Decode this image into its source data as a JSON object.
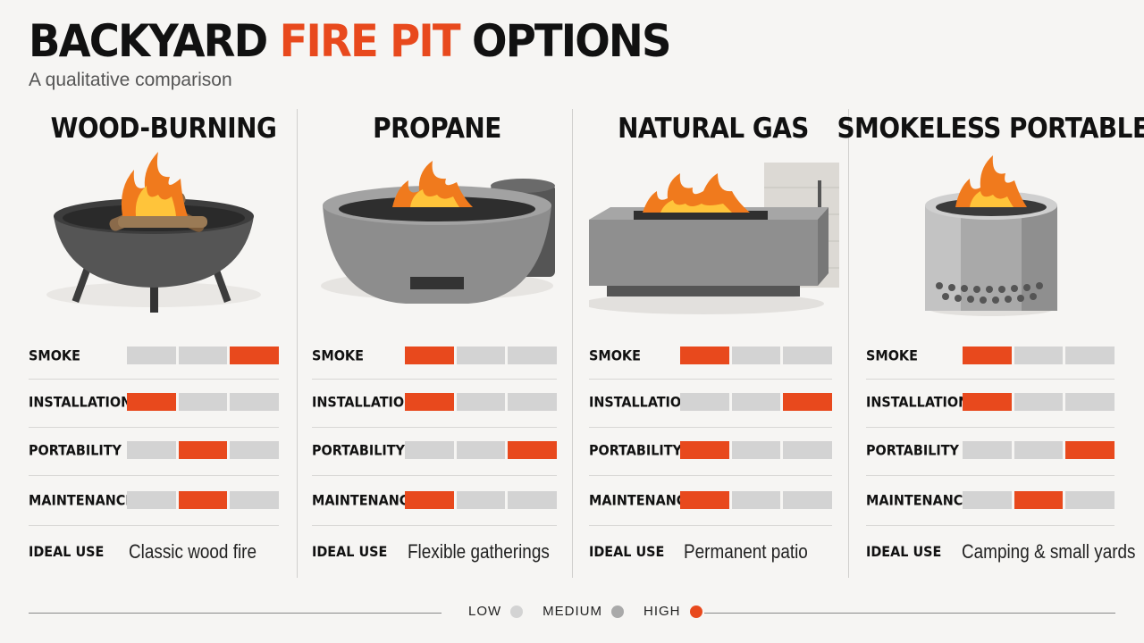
{
  "title": {
    "part1": "BACKYARD ",
    "part2": "FIRE PIT",
    "part3": " OPTIONS"
  },
  "subtitle": "A qualitative comparison",
  "labels": {
    "smoke": "SMOKE",
    "installation": "INSTALLATION",
    "portability": "PORTABILITY",
    "maintenance": "MAINTENANCE",
    "ideal_use": "IDEAL USE"
  },
  "columns": [
    {
      "name": "WOOD-BURNING",
      "ratings": {
        "smoke": 3,
        "installation": 1,
        "portability": 2,
        "maintenance": 2
      },
      "ideal_use": "Classic wood fire",
      "illustration": "wood-fire-pit"
    },
    {
      "name": "PROPANE",
      "ratings": {
        "smoke": 1,
        "installation": 1,
        "portability": 3,
        "maintenance": 1
      },
      "ideal_use": "Flexible gatherings",
      "illustration": "propane-fire-bowl"
    },
    {
      "name": "NATURAL GAS",
      "ratings": {
        "smoke": 1,
        "installation": 3,
        "portability": 1,
        "maintenance": 1
      },
      "ideal_use": "Permanent patio",
      "illustration": "natural-gas-fire-table"
    },
    {
      "name": "SMOKELESS PORTABLE",
      "ratings": {
        "smoke": 1,
        "installation": 1,
        "portability": 3,
        "maintenance": 2
      },
      "ideal_use": "Camping & small yards",
      "illustration": "smokeless-steel-pit"
    }
  ],
  "legend": [
    {
      "label": "LOW",
      "color": "#d3d3d3"
    },
    {
      "label": "MEDIUM",
      "color": "#a9a9a9"
    },
    {
      "label": "HIGH",
      "color": "#e8491d"
    }
  ],
  "colors": {
    "accent": "#e8491d",
    "inactive": "#d3d3d3"
  }
}
